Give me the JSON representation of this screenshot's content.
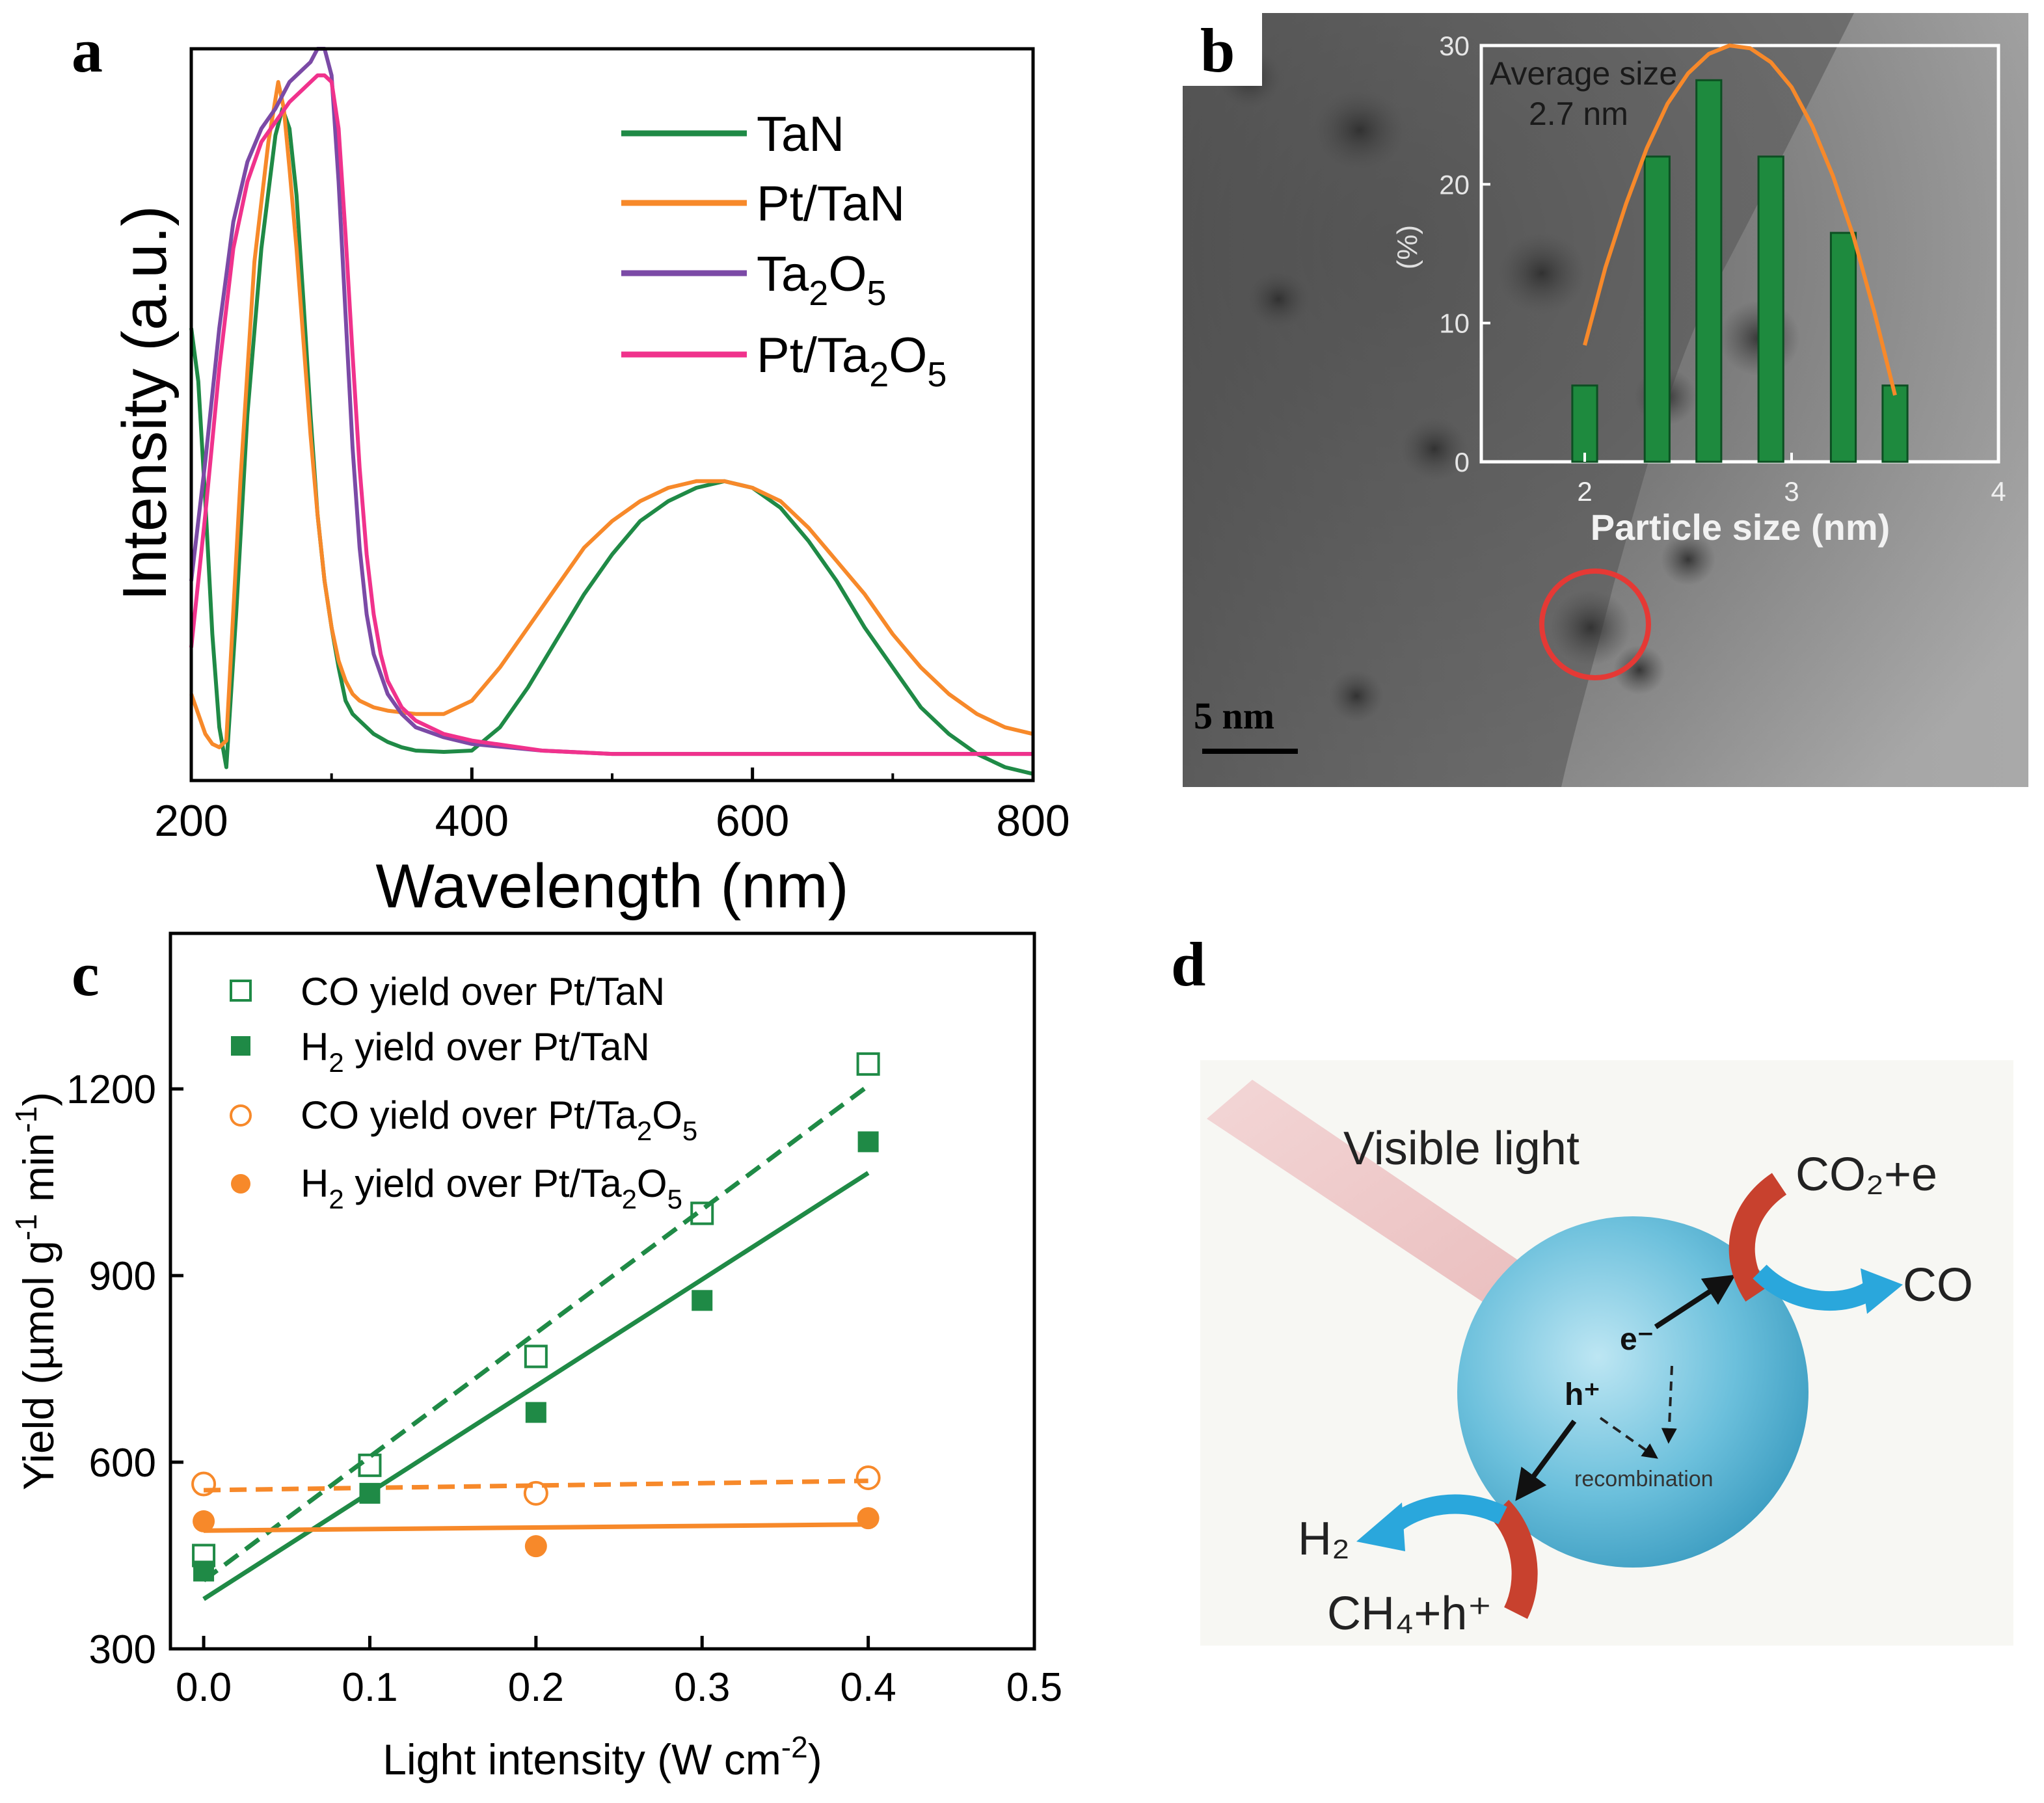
{
  "colors": {
    "tan": "#1f8a46",
    "pt_tan": "#f7892a",
    "ta2o5": "#7b4aa6",
    "pt_ta2o5": "#f0328c",
    "histogram_bar": "#1e8a3e",
    "circle": "#e53935",
    "particle": "#62b8d6",
    "h2_arrow": "#2aa7dc"
  },
  "panels": {
    "a": "a",
    "b": "b",
    "c": "c",
    "d": "d"
  },
  "panel_b": {
    "scale_bar": "5 nm",
    "inset_annotation_line1": "Average size",
    "inset_annotation_line2": "2.7 nm"
  },
  "panel_d": {
    "visible_light": "Visible light",
    "co2_e": "CO₂+e",
    "co": "CO",
    "h2": "H₂",
    "ch4_h": "CH₄+h⁺",
    "electron": "e⁻",
    "hole": "h⁺",
    "recombination": "recombination"
  },
  "chart_data": [
    {
      "id": "a",
      "type": "line",
      "title": "",
      "xlabel": "Wavelength (nm)",
      "ylabel": "Intensity (a.u.)",
      "xlim": [
        200,
        800
      ],
      "ylim": [
        0,
        1.1
      ],
      "xticks": [
        200,
        400,
        600,
        800
      ],
      "xtick_labels": [
        "200",
        "400",
        "600",
        "800"
      ],
      "legend_position": "top-right",
      "series": [
        {
          "name": "TaN",
          "legend_label": "TaN",
          "color_key": "tan",
          "x": [
            200,
            205,
            210,
            215,
            220,
            225,
            232,
            240,
            250,
            260,
            265,
            270,
            275,
            280,
            285,
            290,
            295,
            300,
            305,
            310,
            315,
            320,
            330,
            340,
            350,
            360,
            380,
            400,
            420,
            440,
            460,
            480,
            500,
            520,
            540,
            560,
            580,
            600,
            620,
            640,
            660,
            680,
            700,
            720,
            740,
            760,
            780,
            800
          ],
          "y": [
            0.68,
            0.6,
            0.42,
            0.22,
            0.08,
            0.02,
            0.25,
            0.55,
            0.8,
            0.97,
            1.01,
            0.98,
            0.88,
            0.72,
            0.55,
            0.4,
            0.3,
            0.23,
            0.17,
            0.12,
            0.1,
            0.09,
            0.07,
            0.058,
            0.05,
            0.045,
            0.043,
            0.045,
            0.08,
            0.14,
            0.21,
            0.28,
            0.34,
            0.39,
            0.42,
            0.44,
            0.45,
            0.44,
            0.41,
            0.36,
            0.3,
            0.23,
            0.17,
            0.11,
            0.07,
            0.04,
            0.02,
            0.01
          ]
        },
        {
          "name": "Pt/TaN",
          "legend_label": "Pt/TaN",
          "color_key": "pt_tan",
          "x": [
            200,
            205,
            210,
            215,
            220,
            225,
            235,
            245,
            255,
            262,
            266,
            270,
            275,
            280,
            285,
            290,
            295,
            300,
            305,
            310,
            315,
            320,
            330,
            340,
            360,
            380,
            400,
            420,
            440,
            460,
            480,
            500,
            520,
            540,
            560,
            580,
            600,
            620,
            640,
            660,
            680,
            700,
            720,
            740,
            760,
            780,
            800
          ],
          "y": [
            0.13,
            0.1,
            0.07,
            0.055,
            0.05,
            0.06,
            0.45,
            0.78,
            0.96,
            1.05,
            1.01,
            0.92,
            0.8,
            0.66,
            0.52,
            0.4,
            0.3,
            0.23,
            0.18,
            0.15,
            0.13,
            0.12,
            0.11,
            0.105,
            0.1,
            0.1,
            0.12,
            0.17,
            0.23,
            0.29,
            0.35,
            0.39,
            0.42,
            0.44,
            0.45,
            0.45,
            0.44,
            0.42,
            0.38,
            0.33,
            0.28,
            0.22,
            0.17,
            0.13,
            0.1,
            0.08,
            0.07
          ]
        },
        {
          "name": "Ta2O5",
          "legend_label_main": "Ta",
          "legend_label_sub1": "2",
          "legend_label_mid": "O",
          "legend_label_sub2": "5",
          "color_key": "ta2o5",
          "x": [
            200,
            210,
            220,
            230,
            240,
            250,
            260,
            270,
            280,
            285,
            290,
            295,
            300,
            305,
            310,
            315,
            320,
            325,
            330,
            340,
            350,
            360,
            380,
            400,
            450,
            500,
            550,
            600,
            650,
            700,
            750,
            800
          ],
          "y": [
            0.3,
            0.48,
            0.68,
            0.84,
            0.93,
            0.98,
            1.01,
            1.05,
            1.07,
            1.08,
            1.1,
            1.1,
            1.06,
            0.9,
            0.7,
            0.5,
            0.35,
            0.25,
            0.19,
            0.13,
            0.1,
            0.08,
            0.065,
            0.055,
            0.045,
            0.04,
            0.04,
            0.04,
            0.04,
            0.04,
            0.04,
            0.04
          ]
        },
        {
          "name": "Pt/Ta2O5",
          "legend_label_main": "Pt/Ta",
          "legend_label_sub1": "2",
          "legend_label_mid": "O",
          "legend_label_sub2": "5",
          "color_key": "pt_ta2o5",
          "x": [
            200,
            210,
            220,
            230,
            240,
            250,
            260,
            270,
            280,
            290,
            295,
            300,
            305,
            310,
            315,
            320,
            325,
            330,
            335,
            340,
            350,
            360,
            380,
            400,
            450,
            500,
            550,
            600,
            650,
            700,
            750,
            800
          ],
          "y": [
            0.2,
            0.4,
            0.62,
            0.8,
            0.9,
            0.96,
            0.99,
            1.02,
            1.04,
            1.06,
            1.06,
            1.05,
            0.98,
            0.82,
            0.64,
            0.47,
            0.34,
            0.25,
            0.19,
            0.15,
            0.11,
            0.09,
            0.07,
            0.06,
            0.045,
            0.04,
            0.04,
            0.04,
            0.04,
            0.04,
            0.04,
            0.04
          ]
        }
      ]
    },
    {
      "id": "b-inset",
      "type": "bar",
      "title": "",
      "xlabel": "Particle size (nm)",
      "ylabel": "(%)",
      "xlim": [
        1.5,
        4
      ],
      "ylim": [
        0,
        30
      ],
      "xticks": [
        2,
        3,
        4
      ],
      "xtick_labels": [
        "2",
        "3",
        "4"
      ],
      "yticks": [
        0,
        10,
        20,
        30
      ],
      "ytick_labels": [
        "0",
        "10",
        "20",
        "30"
      ],
      "bar_width": 0.12,
      "x": [
        2.0,
        2.35,
        2.6,
        2.9,
        3.25,
        3.5
      ],
      "values": [
        5.5,
        22,
        27.5,
        22,
        16.5,
        5.5
      ],
      "fit_curve": {
        "x": [
          2.0,
          2.1,
          2.2,
          2.3,
          2.4,
          2.5,
          2.6,
          2.7,
          2.8,
          2.9,
          3.0,
          3.1,
          3.2,
          3.3,
          3.4,
          3.5
        ],
        "y": [
          8.4,
          14.0,
          18.6,
          22.6,
          25.8,
          28.0,
          29.4,
          30.0,
          29.8,
          28.8,
          27.0,
          24.2,
          20.6,
          16.2,
          10.8,
          4.8
        ]
      }
    },
    {
      "id": "c",
      "type": "scatter",
      "title": "",
      "xlabel_main": "Light intensity (W cm",
      "xlabel_sup": "-2",
      "xlabel_end": ")",
      "ylabel_main": "Yield (µmol g",
      "ylabel_sup1": "-1",
      "ylabel_mid": " min",
      "ylabel_sup2": "-1",
      "ylabel_end": ")",
      "xlim": [
        -0.02,
        0.5
      ],
      "ylim": [
        300,
        1450
      ],
      "xticks": [
        0.0,
        0.1,
        0.2,
        0.3,
        0.4,
        0.5
      ],
      "xtick_labels": [
        "0.0",
        "0.1",
        "0.2",
        "0.3",
        "0.4",
        "0.5"
      ],
      "yticks": [
        300,
        600,
        900,
        1200
      ],
      "ytick_labels": [
        "300",
        "600",
        "900",
        "1200"
      ],
      "legend_position": "top-left",
      "series": [
        {
          "name": "CO yield over Pt/TaN",
          "legend_main": "CO yield over Pt/TaN",
          "marker": "square-open",
          "color_key": "tan",
          "line_style": "dashed",
          "x": [
            0.0,
            0.1,
            0.2,
            0.3,
            0.4
          ],
          "y": [
            450,
            595,
            770,
            1000,
            1240
          ],
          "fit": [
            [
              0.0,
              410
            ],
            [
              0.4,
              1205
            ]
          ]
        },
        {
          "name": "H2 yield over Pt/TaN",
          "legend_pre": "H",
          "legend_sub": "2",
          "legend_post": " yield over Pt/TaN",
          "marker": "square-filled",
          "color_key": "tan",
          "line_style": "solid",
          "x": [
            0.0,
            0.1,
            0.2,
            0.3,
            0.4
          ],
          "y": [
            425,
            550,
            680,
            860,
            1115
          ],
          "fit": [
            [
              0.0,
              380
            ],
            [
              0.4,
              1065
            ]
          ]
        },
        {
          "name": "CO yield over Pt/Ta2O5",
          "legend_pre": "CO yield over Pt/Ta",
          "legend_sub": "2",
          "legend_mid": "O",
          "legend_sub2": "5",
          "marker": "circle-open",
          "color_key": "pt_tan",
          "line_style": "dashed",
          "x": [
            0.0,
            0.2,
            0.4
          ],
          "y": [
            565,
            550,
            575
          ],
          "fit": [
            [
              0.0,
              555
            ],
            [
              0.4,
              570
            ]
          ]
        },
        {
          "name": "H2 yield over Pt/Ta2O5",
          "legend_pre": "H",
          "legend_sub": "2",
          "legend_post": " yield over Pt/Ta",
          "legend_sub_b": "2",
          "legend_mid": "O",
          "legend_sub2": "5",
          "marker": "circle-filled",
          "color_key": "pt_tan",
          "line_style": "solid",
          "x": [
            0.0,
            0.2,
            0.4
          ],
          "y": [
            505,
            465,
            510
          ],
          "fit": [
            [
              0.0,
              490
            ],
            [
              0.4,
              500
            ]
          ]
        }
      ]
    }
  ]
}
